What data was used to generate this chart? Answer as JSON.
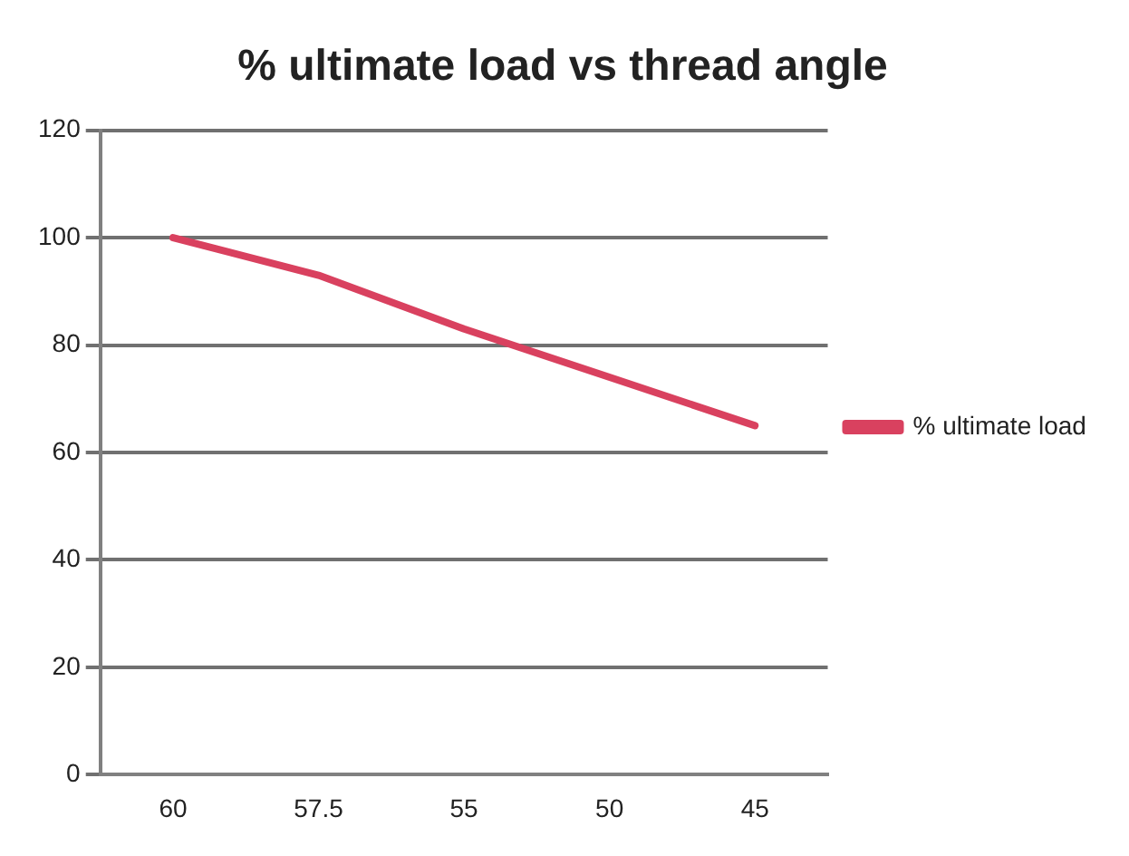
{
  "chart_data": {
    "type": "line",
    "title": "% ultimate load vs thread angle",
    "categories": [
      "60",
      "57.5",
      "55",
      "50",
      "45"
    ],
    "series": [
      {
        "name": "% ultimate load",
        "color": "#d9415f",
        "values": [
          100,
          93,
          83,
          74,
          65
        ]
      }
    ],
    "ylim": [
      0,
      120
    ],
    "yticks": [
      0,
      20,
      40,
      60,
      80,
      100,
      120
    ],
    "grid": "y",
    "legend": "right",
    "marker": "none",
    "line_style": "solid"
  }
}
